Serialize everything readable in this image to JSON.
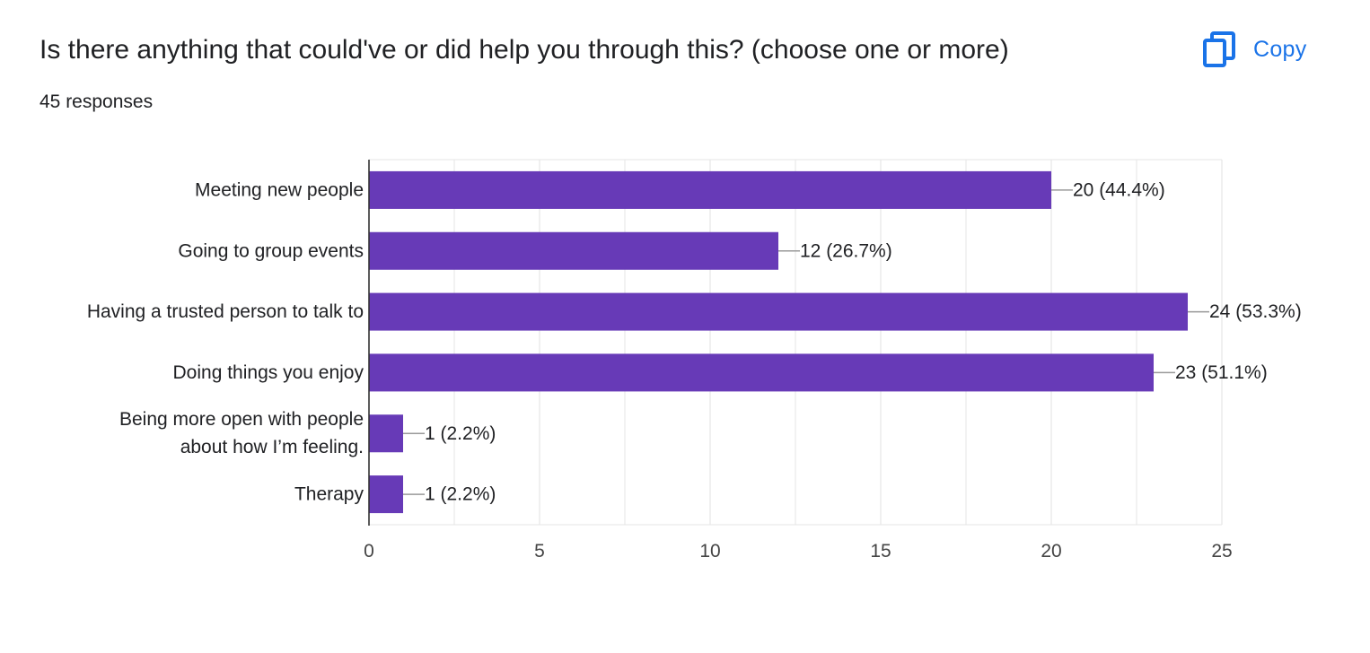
{
  "header": {
    "question": "Is there anything that could've or did help you through this? (choose one or more)",
    "responses": "45 responses",
    "copy_label": "Copy",
    "copy_icon": "copy-icon"
  },
  "colors": {
    "bar": "#673ab7",
    "accent": "#1a73e8",
    "text": "#202124",
    "grid": "#e6e6e6",
    "axis": "#333333"
  },
  "chart_data": {
    "type": "bar",
    "orientation": "horizontal",
    "categories": [
      "Meeting new people",
      "Going to group events",
      "Having a trusted person to talk to",
      "Doing things you enjoy",
      "Being more open with people about how I’m feeling.",
      "Therapy"
    ],
    "values": [
      20,
      12,
      24,
      23,
      1,
      1
    ],
    "value_labels": [
      "20 (44.4%)",
      "12 (26.7%)",
      "24 (53.3%)",
      "23 (51.1%)",
      "1 (2.2%)",
      "1 (2.2%)"
    ],
    "xlim": [
      0,
      25
    ],
    "xticks": [
      "0",
      "5",
      "10",
      "15",
      "20",
      "25"
    ],
    "grid": true,
    "title": "",
    "xlabel": "",
    "ylabel": ""
  }
}
